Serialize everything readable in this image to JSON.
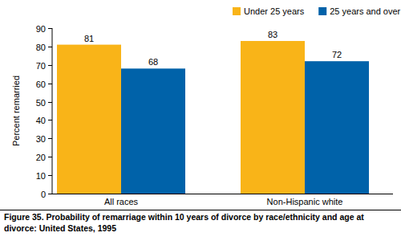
{
  "chart_data": {
    "type": "bar",
    "title": "Figure 35. Probability of remarriage within 10 years of divorce by race/ethnicity and age at divorce: United States, 1995",
    "y_label": "Percent remarried",
    "categories": [
      "All races",
      "Non-Hispanic white"
    ],
    "series": [
      {
        "name": "Under 25 years",
        "color": "#f9b418",
        "values": [
          81,
          83
        ]
      },
      {
        "name": "25 years and over",
        "color": "#0062a9",
        "values": [
          68,
          72
        ]
      }
    ],
    "ylim": [
      0,
      90
    ],
    "yticks": [
      0,
      10,
      20,
      30,
      40,
      50,
      60,
      70,
      80,
      90
    ],
    "grid": false,
    "legend": "top",
    "data_labels": true
  }
}
